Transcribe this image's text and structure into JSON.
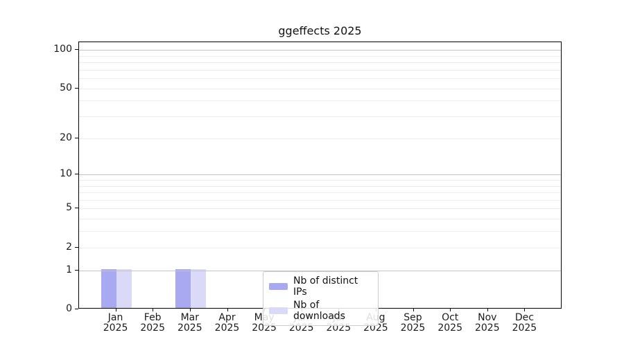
{
  "chart_data": {
    "type": "bar",
    "title": "ggeffects 2025",
    "categories": [
      "Jan",
      "Feb",
      "Mar",
      "Apr",
      "May",
      "Jun",
      "Jul",
      "Aug",
      "Sep",
      "Oct",
      "Nov",
      "Dec"
    ],
    "x_tick_year": "2025",
    "series": [
      {
        "key": "distinct-ips",
        "name": "Nb of distinct IPs",
        "color": "#a9a9f2",
        "values": [
          1,
          0,
          1,
          0,
          0,
          0,
          0,
          0,
          0,
          0,
          0,
          0
        ]
      },
      {
        "key": "downloads",
        "name": "Nb of downloads",
        "color": "#dadaf8",
        "values": [
          1,
          0,
          1,
          0,
          0,
          0,
          0,
          0,
          0,
          0,
          0,
          0
        ]
      }
    ],
    "yscale": "log1p",
    "ylim": [
      0,
      116
    ],
    "yticks": [
      0,
      1,
      2,
      5,
      10,
      20,
      50,
      100
    ],
    "ytick_labels": [
      "0",
      "1",
      "2",
      "5",
      "10",
      "20",
      "50",
      "100"
    ],
    "major_gridlines": [
      1,
      10,
      100
    ],
    "minor_gridlines": [
      2,
      3,
      4,
      5,
      6,
      7,
      8,
      9,
      20,
      30,
      40,
      50,
      60,
      70,
      80,
      90
    ],
    "grid": true,
    "legend_position": "lower center",
    "xlabel": "",
    "ylabel": ""
  },
  "colors": {
    "major_grid": "#c3c3c3",
    "minor_grid": "#ebebeb",
    "spine": "#000000",
    "legend_border": "#cccccc",
    "bar_distinct_ips": "#a9a9f2",
    "bar_downloads": "#dadaf8"
  }
}
